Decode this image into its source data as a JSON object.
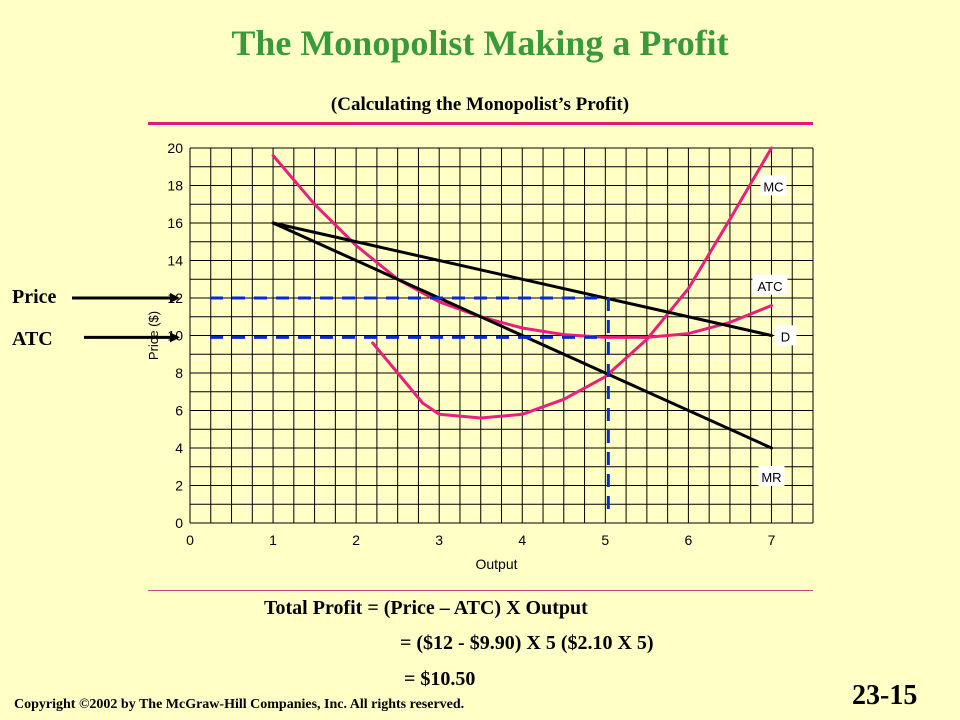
{
  "slide": {
    "title": "The Monopolist Making a Profit",
    "subtitle": "(Calculating the Monopolist’s Profit)",
    "price_label": "Price",
    "atc_label": "ATC",
    "formula_line1": "Total Profit = (Price – ATC) X Output",
    "formula_line2": "= ($12 - $9.90) X 5  ($2.10 X 5)",
    "formula_line3": "= $10.50",
    "copyright": "Copyright ©2002 by The McGraw-Hill Companies, Inc.  All rights reserved.",
    "slide_number": "23-15"
  },
  "colors": {
    "background": "#ffffc6",
    "title": "#3a9a3a",
    "curve_pink": "#e8207a",
    "line_black": "#000000",
    "dashed_blue": "#0a2acc",
    "grid": "#000000"
  },
  "chart_data": {
    "type": "line",
    "xlabel": "Output",
    "ylabel": "Price ($)",
    "xlim": [
      0,
      7.5
    ],
    "ylim": [
      0,
      20
    ],
    "x_ticks": [
      "0",
      "1",
      "2",
      "3",
      "4",
      "5",
      "6",
      "7"
    ],
    "y_ticks": [
      "0",
      "2",
      "4",
      "6",
      "8",
      "10",
      "12",
      "14",
      "16",
      "18",
      "20"
    ],
    "grid": true,
    "series": [
      {
        "name": "MC",
        "color": "#e8207a",
        "points": [
          [
            2.2,
            9.6
          ],
          [
            2.5,
            8.0
          ],
          [
            2.8,
            6.4
          ],
          [
            3.0,
            5.8
          ],
          [
            3.5,
            5.6
          ],
          [
            4.0,
            5.8
          ],
          [
            4.5,
            6.6
          ],
          [
            5.0,
            7.8
          ],
          [
            5.5,
            9.8
          ],
          [
            6.0,
            12.5
          ],
          [
            6.5,
            16.2
          ],
          [
            7.0,
            20.0
          ]
        ]
      },
      {
        "name": "ATC",
        "color": "#e8207a",
        "points": [
          [
            1.0,
            19.6
          ],
          [
            1.5,
            17.0
          ],
          [
            2.0,
            14.8
          ],
          [
            2.5,
            13.0
          ],
          [
            3.0,
            11.8
          ],
          [
            3.5,
            11.0
          ],
          [
            4.0,
            10.4
          ],
          [
            4.5,
            10.05
          ],
          [
            5.0,
            9.9
          ],
          [
            5.5,
            9.9
          ],
          [
            6.0,
            10.1
          ],
          [
            6.5,
            10.7
          ],
          [
            7.0,
            11.6
          ]
        ]
      },
      {
        "name": "D",
        "color": "#000000",
        "points": [
          [
            1.0,
            16.0
          ],
          [
            7.0,
            10.0
          ]
        ]
      },
      {
        "name": "MR",
        "color": "#000000",
        "points": [
          [
            1.0,
            16.0
          ],
          [
            7.0,
            4.0
          ]
        ]
      }
    ],
    "reference_lines": [
      {
        "label": "Price",
        "y": 12.0,
        "x_to": 5
      },
      {
        "label": "ATC",
        "y": 9.9,
        "x_to": 5
      },
      {
        "label": "Output",
        "x": 5,
        "y_from": 0,
        "y_to": 12.0
      }
    ]
  }
}
